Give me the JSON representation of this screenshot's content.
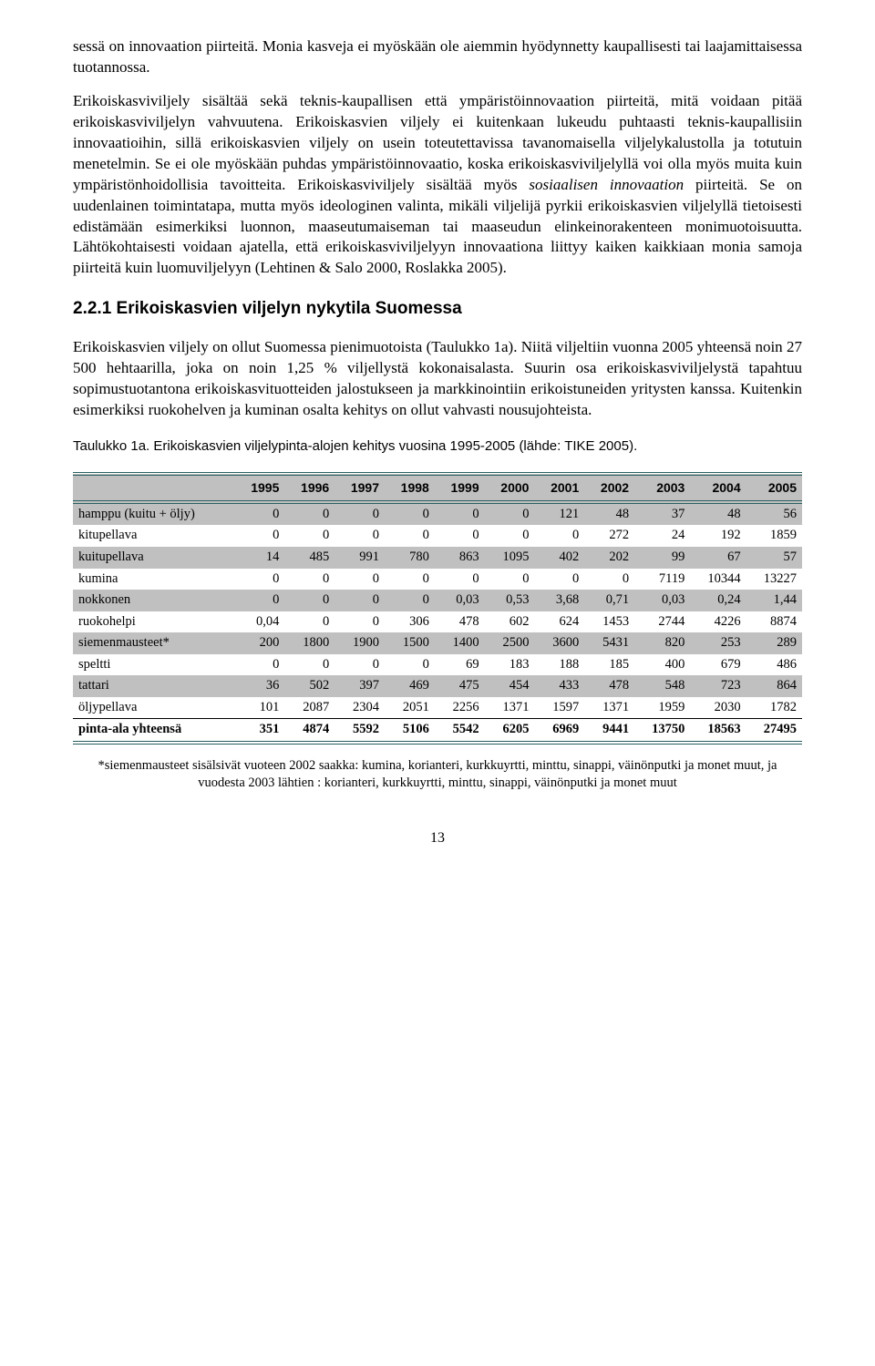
{
  "paragraphs": {
    "p1": "sessä on innovaation piirteitä. Monia kasveja ei myöskään ole aiemmin hyödynnetty kaupallisesti tai laajamittaisessa tuotannossa.",
    "p2_a": "Erikoiskasviviljely sisältää sekä teknis-kaupallisen että ympäristöinnovaation piirteitä, mitä voidaan pitää erikoiskasviviljelyn vahvuutena. Erikoiskasvien viljely ei kuitenkaan lukeudu puhtaasti teknis-kaupallisiin innovaatioihin, sillä  erikoiskasvien viljely on usein toteutettavissa tavanomaisella viljelykalustolla ja totutuin menetelmin. Se ei ole myöskään puhdas ympäristöinnovaatio, koska erikoiskasviviljelyllä voi olla myös muita kuin ympäristönhoidollisia tavoitteita. Erikoiskasviviljely sisältää myös ",
    "p2_i": "sosiaalisen innovaation",
    "p2_b": " piirteitä. Se on uudenlainen toimintatapa, mutta myös ideologinen valinta, mikäli viljelijä pyrkii erikoiskasvien viljelyllä tietoisesti edistämään esimerkiksi luonnon, maaseutumaiseman tai maaseudun elinkeinorakenteen monimuotoisuutta. Lähtökohtaisesti voidaan ajatella, että erikoiskasviviljelyyn innovaationa liittyy kaiken kaikkiaan monia samoja piirteitä kuin luomuviljelyyn (Lehtinen & Salo 2000, Roslakka 2005).",
    "p3": "Erikoiskasvien viljely on ollut Suomessa pienimuotoista (Taulukko 1a). Niitä viljeltiin vuonna 2005 yhteensä noin 27 500 hehtaarilla, joka on noin 1,25 % viljellystä kokonaisalasta. Suurin osa erikoiskasviviljelystä tapahtuu sopimustuotantona erikoiskasvituotteiden jalostukseen ja markkinointiin erikoistuneiden yritysten kanssa. Kuitenkin esimerkiksi ruokohelven ja kuminan osalta kehitys on ollut vahvasti nousujohteista."
  },
  "heading": "2.2.1  Erikoiskasvien viljelyn nykytila Suomessa",
  "table_caption": "Taulukko 1a. Erikoiskasvien viljelypinta-alojen kehitys vuosina 1995-2005 (lähde: TIKE 2005).",
  "table": {
    "columns": [
      "",
      "1995",
      "1996",
      "1997",
      "1998",
      "1999",
      "2000",
      "2001",
      "2002",
      "2003",
      "2004",
      "2005"
    ],
    "rows": [
      {
        "label": "hamppu (kuitu + öljy)",
        "vals": [
          "0",
          "0",
          "0",
          "0",
          "0",
          "0",
          "121",
          "48",
          "37",
          "48",
          "56"
        ],
        "shade": true
      },
      {
        "label": "kitupellava",
        "vals": [
          "0",
          "0",
          "0",
          "0",
          "0",
          "0",
          "0",
          "272",
          "24",
          "192",
          "1859"
        ],
        "shade": false
      },
      {
        "label": "kuitupellava",
        "vals": [
          "14",
          "485",
          "991",
          "780",
          "863",
          "1095",
          "402",
          "202",
          "99",
          "67",
          "57"
        ],
        "shade": true
      },
      {
        "label": "kumina",
        "vals": [
          "0",
          "0",
          "0",
          "0",
          "0",
          "0",
          "0",
          "0",
          "7119",
          "10344",
          "13227"
        ],
        "shade": false
      },
      {
        "label": "nokkonen",
        "vals": [
          "0",
          "0",
          "0",
          "0",
          "0,03",
          "0,53",
          "3,68",
          "0,71",
          "0,03",
          "0,24",
          "1,44"
        ],
        "shade": true
      },
      {
        "label": "ruokohelpi",
        "vals": [
          "0,04",
          "0",
          "0",
          "306",
          "478",
          "602",
          "624",
          "1453",
          "2744",
          "4226",
          "8874"
        ],
        "shade": false
      },
      {
        "label": "siemenmausteet*",
        "vals": [
          "200",
          "1800",
          "1900",
          "1500",
          "1400",
          "2500",
          "3600",
          "5431",
          "820",
          "253",
          "289"
        ],
        "shade": true
      },
      {
        "label": "speltti",
        "vals": [
          "0",
          "0",
          "0",
          "0",
          "69",
          "183",
          "188",
          "185",
          "400",
          "679",
          "486"
        ],
        "shade": false
      },
      {
        "label": "tattari",
        "vals": [
          "36",
          "502",
          "397",
          "469",
          "475",
          "454",
          "433",
          "478",
          "548",
          "723",
          "864"
        ],
        "shade": true
      },
      {
        "label": "öljypellava",
        "vals": [
          "101",
          "2087",
          "2304",
          "2051",
          "2256",
          "1371",
          "1597",
          "1371",
          "1959",
          "2030",
          "1782"
        ],
        "shade": false
      }
    ],
    "total": {
      "label": "pinta-ala yhteensä",
      "vals": [
        "351",
        "4874",
        "5592",
        "5106",
        "5542",
        "6205",
        "6969",
        "9441",
        "13750",
        "18563",
        "27495"
      ]
    }
  },
  "footnote": "*siemenmausteet sisälsivät vuoteen 2002 saakka: kumina, korianteri, kurkkuyrtti, minttu, sinappi, väinönputki ja monet muut, ja vuodesta 2003 lähtien : korianteri, kurkkuyrtti, minttu, sinappi, väinönputki ja monet muut",
  "page_number": "13",
  "colors": {
    "table_border": "#2a5f5f",
    "shade_bg": "#c0c0c0",
    "text": "#000000",
    "bg": "#ffffff"
  }
}
